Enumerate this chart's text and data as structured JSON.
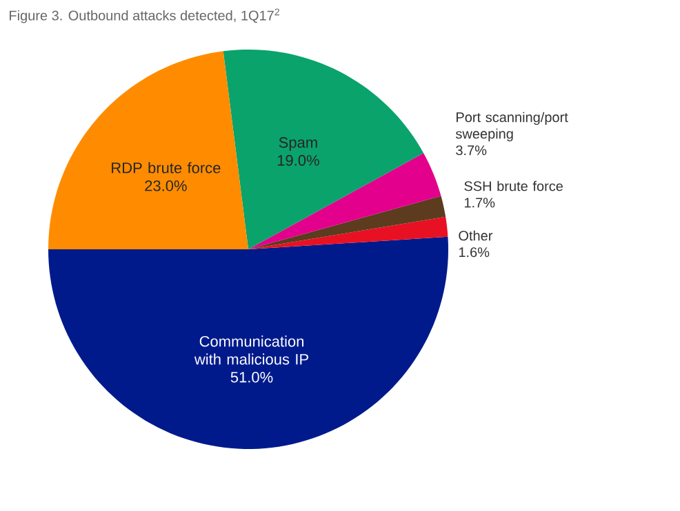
{
  "chart_data": {
    "type": "pie",
    "title": "Figure 3. Outbound attacks detected, 1Q17$^{2}$",
    "categories": [
      "Communication with malicious IP",
      "Other",
      "SSH brute force",
      "Port scanning/port sweeping",
      "Spam",
      "RDP brute force"
    ],
    "values": [
      51.0,
      1.6,
      1.7,
      3.7,
      19.0,
      23.0
    ],
    "value_labels": [
      "51.0%",
      "1.6%",
      "1.7%",
      "3.7%",
      "19.0%",
      "23.0%"
    ],
    "colors": [
      "#001a8c",
      "#e81123",
      "#5c3b1e",
      "#e3008c",
      "#0aa36b",
      "#ff8c00"
    ]
  }
}
